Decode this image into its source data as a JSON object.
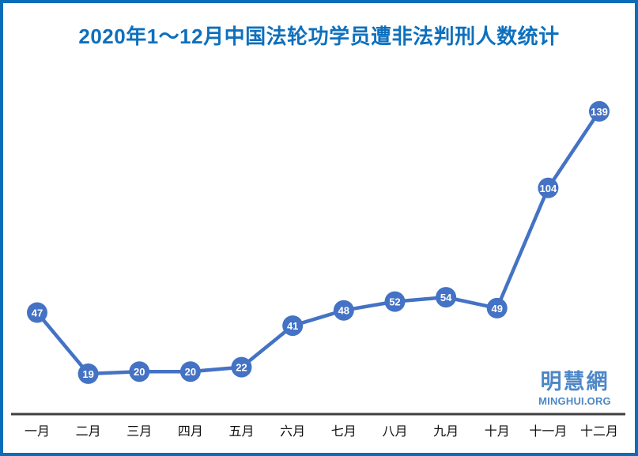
{
  "title": "2020年1～12月中国法轮功学员遭非法判刑人数统计",
  "watermark": {
    "logo_text": "明慧網",
    "site_text": "MINGHUI.ORG"
  },
  "colors": {
    "border": "#0b6cb8",
    "title": "#0e70bd",
    "line": "#4472C4",
    "marker": "#4472C4",
    "marker_label": "#ffffff",
    "axis": "#3f3f3f",
    "tick_label": "#111111",
    "watermark": "#4e87c6"
  },
  "chart_data": {
    "type": "line",
    "title": "2020年1～12月中国法轮功学员遭非法判刑人数统计",
    "categories": [
      "一月",
      "二月",
      "三月",
      "四月",
      "五月",
      "六月",
      "七月",
      "八月",
      "九月",
      "十月",
      "十一月",
      "十二月"
    ],
    "values": [
      47,
      19,
      20,
      20,
      22,
      41,
      48,
      52,
      54,
      49,
      104,
      139
    ],
    "xlabel": "",
    "ylabel": "",
    "ylim": [
      0,
      170
    ],
    "grid": false,
    "legend_position": "none",
    "point_labels_shown": true,
    "marker_shape": "circle"
  }
}
